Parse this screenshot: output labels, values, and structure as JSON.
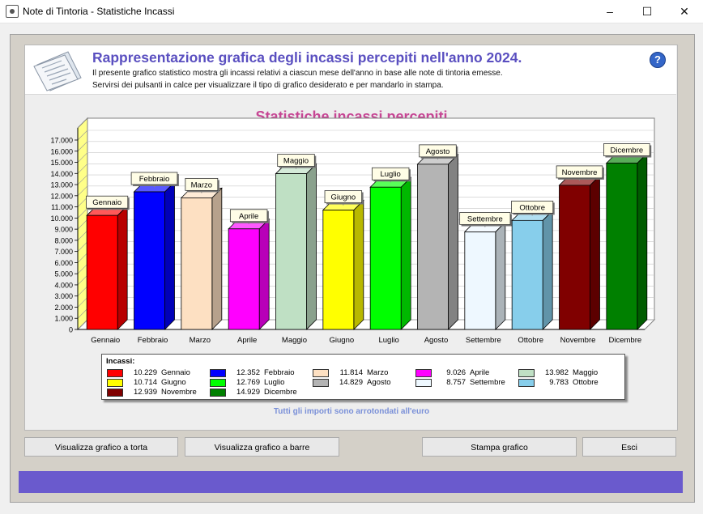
{
  "window": {
    "title": "Note di Tintoria - Statistiche Incassi",
    "controls": {
      "minimize": "–",
      "maximize": "☐",
      "close": "✕"
    }
  },
  "header": {
    "title": "Rappresentazione grafica degli incassi percepiti nell'anno 2024.",
    "line1": "Il presente grafico statistico mostra gli incassi relativi a ciascun mese dell'anno in base alle note di tintoria emesse.",
    "line2": "Servirsi dei pulsanti in calce per visualizzare il tipo di grafico desiderato e per mandarlo in stampa.",
    "help": "?"
  },
  "chart_data": {
    "type": "bar",
    "title": "Statistiche incassi percepiti",
    "categories": [
      "Gennaio",
      "Febbraio",
      "Marzo",
      "Aprile",
      "Maggio",
      "Giugno",
      "Luglio",
      "Agosto",
      "Settembre",
      "Ottobre",
      "Novembre",
      "Dicembre"
    ],
    "values": [
      10229,
      12352,
      11814,
      9026,
      13982,
      10714,
      12769,
      14829,
      8757,
      9783,
      12939,
      14929
    ],
    "colors": [
      "#ff0000",
      "#0000ff",
      "#fde0c2",
      "#ff00ff",
      "#bfe0c4",
      "#ffff00",
      "#00ff00",
      "#b4b4b4",
      "#eef8ff",
      "#87ceeb",
      "#800000",
      "#008000"
    ],
    "ylim": [
      0,
      17000
    ],
    "yticks": [
      "0",
      "1.000",
      "2.000",
      "3.000",
      "4.000",
      "5.000",
      "6.000",
      "7.000",
      "8.000",
      "9.000",
      "10.000",
      "11.000",
      "12.000",
      "13.000",
      "14.000",
      "15.000",
      "16.000",
      "17.000"
    ],
    "grid": true
  },
  "legend": {
    "title": "Incassi:",
    "items": [
      {
        "value": "10.229",
        "name": "Gennaio"
      },
      {
        "value": "12.352",
        "name": "Febbraio"
      },
      {
        "value": "11.814",
        "name": "Marzo"
      },
      {
        "value": "9.026",
        "name": "Aprile"
      },
      {
        "value": "13.982",
        "name": "Maggio"
      },
      {
        "value": "10.714",
        "name": "Giugno"
      },
      {
        "value": "12.769",
        "name": "Luglio"
      },
      {
        "value": "14.829",
        "name": "Agosto"
      },
      {
        "value": "8.757",
        "name": "Settembre"
      },
      {
        "value": "9.783",
        "name": "Ottobre"
      },
      {
        "value": "12.939",
        "name": "Novembre"
      },
      {
        "value": "14.929",
        "name": "Dicembre"
      }
    ]
  },
  "note": "Tutti gli importi sono arrotondati all'euro",
  "buttons": {
    "pie": "Visualizza grafico a torta",
    "bars": "Visualizza grafico a barre",
    "print": "Stampa grafico",
    "exit": "Esci"
  }
}
